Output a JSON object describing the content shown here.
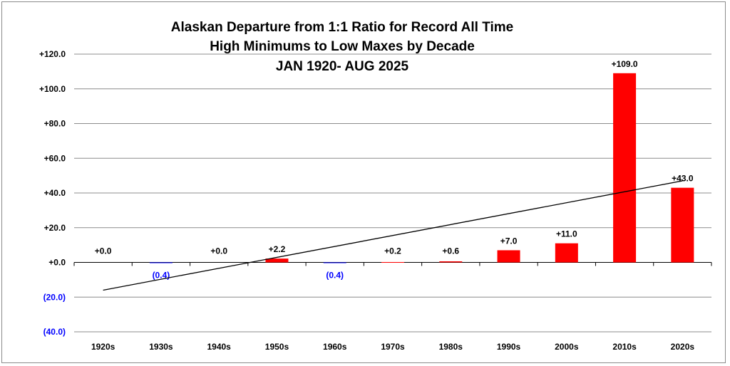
{
  "colors": {
    "positive_bar": "#ff0000",
    "negative_bar": "#0000ff",
    "negative_label": "#0000ff",
    "positive_label": "#000000",
    "gridline": "#8c8c8c",
    "trendline": "#000000"
  },
  "chart_data": {
    "type": "bar",
    "title_lines": [
      "Alaskan Departure from 1:1 Ratio for Record All Time",
      "High Minimums to Low Maxes by Decade",
      "JAN 1920- AUG 2025"
    ],
    "xlabel": "",
    "ylabel": "",
    "categories": [
      "1920s",
      "1930s",
      "1940s",
      "1950s",
      "1960s",
      "1970s",
      "1980s",
      "1990s",
      "2000s",
      "2010s",
      "2020s"
    ],
    "values": [
      0.0,
      -0.4,
      0.0,
      2.2,
      -0.4,
      0.2,
      0.6,
      7.0,
      11.0,
      109.0,
      43.0
    ],
    "data_labels": [
      "+0.0",
      "(0.4)",
      "+0.0",
      "+2.2",
      "(0.4)",
      "+0.2",
      "+0.6",
      "+7.0",
      "+11.0",
      "+109.0",
      "+43.0"
    ],
    "ylim": [
      -40,
      120
    ],
    "yticks": [
      120,
      100,
      80,
      60,
      40,
      20,
      0,
      -20,
      -40
    ],
    "ytick_labels": [
      "+120.0",
      "+100.0",
      "+80.0",
      "+60.0",
      "+40.0",
      "+20.0",
      "+0.0",
      "(20.0)",
      "(40.0)"
    ],
    "grid": true,
    "legend": "none",
    "trendline": {
      "type": "linear",
      "start_value": -16,
      "end_value": 47
    }
  }
}
